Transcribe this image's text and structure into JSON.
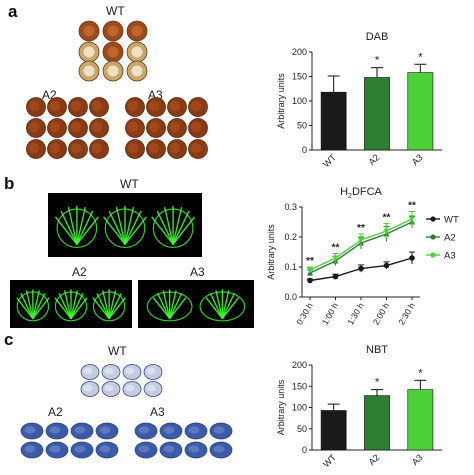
{
  "panels": {
    "a": {
      "letter": "a",
      "groups": [
        "WT",
        "A2",
        "A3"
      ]
    },
    "b": {
      "letter": "b",
      "groups": [
        "WT",
        "A2",
        "A3"
      ]
    },
    "c": {
      "letter": "c",
      "groups": [
        "WT",
        "A2",
        "A3"
      ]
    }
  },
  "colors": {
    "WT": "#1a1a1a",
    "A2": "#2e7d32",
    "A3": "#4cd137",
    "dab_disc": "#8b3a16",
    "nbt_disc": "#3b5aa8",
    "fluor": "#3cff2a"
  },
  "chart_data": [
    {
      "type": "bar",
      "title": "DAB",
      "categories": [
        "WT",
        "A2",
        "A3"
      ],
      "values": [
        118,
        148,
        158
      ],
      "errors": [
        33,
        20,
        17
      ],
      "significance": [
        "",
        "*",
        "*"
      ],
      "ylabel": "Arbitrary units",
      "ylim": [
        0,
        200
      ],
      "yticks": [
        0,
        50,
        100,
        150,
        200
      ]
    },
    {
      "type": "line",
      "title": "H",
      "title_sub": "2",
      "title_rest": "DFCA",
      "x": [
        "0:30 h",
        "1:00 h",
        "1:30 h",
        "2:00 h",
        "2:30 h"
      ],
      "ylabel": "Arbitrary units",
      "ylim": [
        0,
        0.3
      ],
      "yticks": [
        "0.0",
        "0.1",
        "0.2",
        "0.3"
      ],
      "significance": [
        "**",
        "**",
        "**",
        "**",
        "**"
      ],
      "legend": "right",
      "series": [
        {
          "name": "WT",
          "values": [
            0.055,
            0.068,
            0.095,
            0.105,
            0.13
          ],
          "errors": [
            0.005,
            0.008,
            0.012,
            0.012,
            0.02
          ]
        },
        {
          "name": "A2",
          "values": [
            0.08,
            0.12,
            0.18,
            0.21,
            0.25
          ],
          "errors": [
            0.01,
            0.015,
            0.02,
            0.025,
            0.02
          ]
        },
        {
          "name": "A3",
          "values": [
            0.09,
            0.13,
            0.19,
            0.22,
            0.26
          ],
          "errors": [
            0.01,
            0.015,
            0.02,
            0.025,
            0.025
          ]
        }
      ]
    },
    {
      "type": "bar",
      "title": "NBT",
      "categories": [
        "WT",
        "A2",
        "A3"
      ],
      "values": [
        93,
        128,
        142
      ],
      "errors": [
        15,
        14,
        22
      ],
      "significance": [
        "",
        "*",
        "*"
      ],
      "ylabel": "Arbitrary units",
      "ylim": [
        0,
        200
      ],
      "yticks": [
        0,
        50,
        100,
        150,
        200
      ]
    }
  ]
}
